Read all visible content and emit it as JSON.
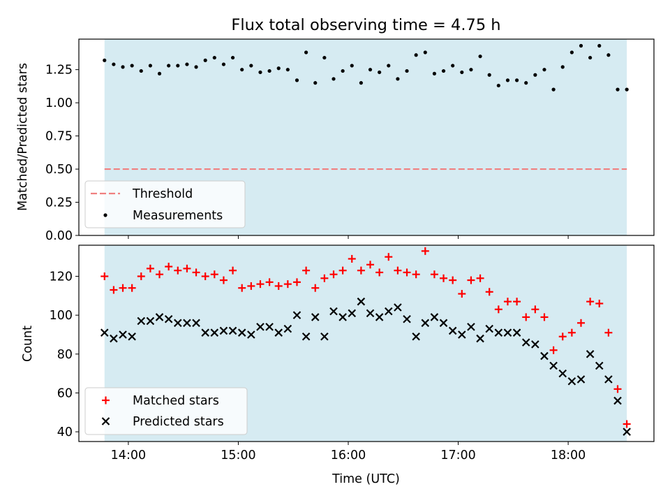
{
  "chart_data": [
    {
      "type": "scatter",
      "title": "Flux total observing time = 4.75 h",
      "xlabel": "",
      "ylabel": "Matched/Predicted stars",
      "xlim_hours": [
        13.55,
        18.78
      ],
      "ylim": [
        0,
        1.48
      ],
      "yticks": [
        {
          "v": 0.0,
          "label": "0.00"
        },
        {
          "v": 0.25,
          "label": "0.25"
        },
        {
          "v": 0.5,
          "label": "0.50"
        },
        {
          "v": 0.75,
          "label": "0.75"
        },
        {
          "v": 1.0,
          "label": "1.00"
        },
        {
          "v": 1.25,
          "label": "1.25"
        }
      ],
      "observing_span": {
        "start": "13:47",
        "end": "18:32",
        "color": "#add8e6"
      },
      "threshold": {
        "name": "Threshold",
        "value": 0.5,
        "color": "#f08080"
      },
      "series": [
        {
          "name": "Measurements",
          "color": "#000000",
          "marker": "dot",
          "x": [
            "13:47",
            "13:52",
            "13:57",
            "14:02",
            "14:07",
            "14:12",
            "14:17",
            "14:22",
            "14:27",
            "14:32",
            "14:37",
            "14:42",
            "14:47",
            "14:52",
            "14:57",
            "15:02",
            "15:07",
            "15:12",
            "15:17",
            "15:22",
            "15:27",
            "15:32",
            "15:37",
            "15:42",
            "15:47",
            "15:52",
            "15:57",
            "16:02",
            "16:07",
            "16:12",
            "16:17",
            "16:22",
            "16:27",
            "16:32",
            "16:37",
            "16:42",
            "16:47",
            "16:52",
            "16:57",
            "17:02",
            "17:07",
            "17:12",
            "17:17",
            "17:22",
            "17:27",
            "17:32",
            "17:37",
            "17:42",
            "17:47",
            "17:52",
            "17:57",
            "18:02",
            "18:07",
            "18:12",
            "18:17",
            "18:22",
            "18:27",
            "18:32"
          ],
          "y": [
            1.32,
            1.29,
            1.27,
            1.28,
            1.24,
            1.28,
            1.22,
            1.28,
            1.28,
            1.29,
            1.27,
            1.32,
            1.34,
            1.29,
            1.34,
            1.25,
            1.28,
            1.23,
            1.24,
            1.26,
            1.25,
            1.17,
            1.38,
            1.15,
            1.34,
            1.18,
            1.24,
            1.28,
            1.15,
            1.25,
            1.23,
            1.28,
            1.18,
            1.24,
            1.36,
            1.38,
            1.22,
            1.24,
            1.28,
            1.23,
            1.25,
            1.35,
            1.21,
            1.13,
            1.17,
            1.17,
            1.15,
            1.21,
            1.25,
            1.1,
            1.27,
            1.38,
            1.43,
            1.34,
            1.43,
            1.36,
            1.1,
            1.1
          ]
        }
      ],
      "legend": {
        "position": "lower-left",
        "entries": [
          "Threshold",
          "Measurements"
        ]
      }
    },
    {
      "type": "scatter",
      "title": "",
      "xlabel": "Time (UTC)",
      "ylabel": "Count",
      "xlim_hours": [
        13.55,
        18.78
      ],
      "ylim": [
        35,
        136
      ],
      "yticks": [
        {
          "v": 40,
          "label": "40"
        },
        {
          "v": 60,
          "label": "60"
        },
        {
          "v": 80,
          "label": "80"
        },
        {
          "v": 100,
          "label": "100"
        },
        {
          "v": 120,
          "label": "120"
        }
      ],
      "xticks": [
        {
          "v": 14,
          "label": "14:00"
        },
        {
          "v": 15,
          "label": "15:00"
        },
        {
          "v": 16,
          "label": "16:00"
        },
        {
          "v": 17,
          "label": "17:00"
        },
        {
          "v": 18,
          "label": "18:00"
        }
      ],
      "observing_span": {
        "start": "13:47",
        "end": "18:32",
        "color": "#add8e6"
      },
      "x": [
        "13:47",
        "13:52",
        "13:57",
        "14:02",
        "14:07",
        "14:12",
        "14:17",
        "14:22",
        "14:27",
        "14:32",
        "14:37",
        "14:42",
        "14:47",
        "14:52",
        "14:57",
        "15:02",
        "15:07",
        "15:12",
        "15:17",
        "15:22",
        "15:27",
        "15:32",
        "15:37",
        "15:42",
        "15:47",
        "15:52",
        "15:57",
        "16:02",
        "16:07",
        "16:12",
        "16:17",
        "16:22",
        "16:27",
        "16:32",
        "16:37",
        "16:42",
        "16:47",
        "16:52",
        "16:57",
        "17:02",
        "17:07",
        "17:12",
        "17:17",
        "17:22",
        "17:27",
        "17:32",
        "17:37",
        "17:42",
        "17:47",
        "17:52",
        "17:57",
        "18:02",
        "18:07",
        "18:12",
        "18:17",
        "18:22",
        "18:27",
        "18:32"
      ],
      "series": [
        {
          "name": "Matched stars",
          "color": "#ff0000",
          "marker": "plus",
          "values": [
            120,
            113,
            114,
            114,
            120,
            124,
            121,
            125,
            123,
            124,
            122,
            120,
            121,
            118,
            123,
            114,
            115,
            116,
            117,
            115,
            116,
            117,
            123,
            114,
            119,
            121,
            123,
            129,
            123,
            126,
            122,
            130,
            123,
            122,
            121,
            133,
            121,
            119,
            118,
            111,
            118,
            119,
            112,
            103,
            107,
            107,
            99,
            103,
            99,
            82,
            89,
            91,
            96,
            107,
            106,
            91,
            62,
            44
          ]
        },
        {
          "name": "Predicted stars",
          "color": "#000000",
          "marker": "x",
          "values": [
            91,
            88,
            90,
            89,
            97,
            97,
            99,
            98,
            96,
            96,
            96,
            91,
            91,
            92,
            92,
            91,
            90,
            94,
            94,
            91,
            93,
            100,
            89,
            99,
            89,
            102,
            99,
            101,
            107,
            101,
            99,
            102,
            104,
            98,
            89,
            96,
            99,
            96,
            92,
            90,
            94,
            88,
            93,
            91,
            91,
            91,
            86,
            85,
            79,
            74,
            70,
            66,
            67,
            80,
            74,
            67,
            56,
            40
          ]
        }
      ],
      "legend": {
        "position": "lower-left",
        "entries": [
          "Matched stars",
          "Predicted stars"
        ]
      }
    }
  ]
}
